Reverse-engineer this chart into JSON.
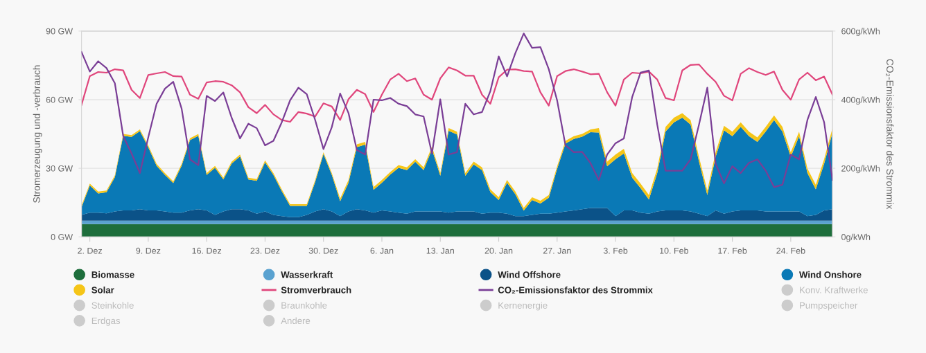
{
  "chart_data": {
    "type": "area",
    "stacked": true,
    "ylabel": "Stromerzeugung und -verbrauch",
    "y2label": "CO₂-Emissionsfaktor des Strommix",
    "categories": [
      null,
      "2. Dez",
      null,
      null,
      null,
      null,
      null,
      null,
      "9. Dez",
      null,
      null,
      null,
      null,
      null,
      null,
      "16. Dez",
      null,
      null,
      null,
      null,
      null,
      null,
      "23. Dez",
      null,
      null,
      null,
      null,
      null,
      null,
      "30. Dez",
      null,
      null,
      null,
      null,
      null,
      null,
      "6. Jan",
      null,
      null,
      null,
      null,
      null,
      null,
      "13. Jan",
      null,
      null,
      null,
      null,
      null,
      null,
      "20. Jan",
      null,
      null,
      null,
      null,
      null,
      null,
      "27. Jan",
      null,
      null,
      null,
      null,
      null,
      null,
      "3. Feb",
      null,
      null,
      null,
      null,
      null,
      null,
      "10. Feb",
      null,
      null,
      null,
      null,
      null,
      null,
      "17. Feb",
      null,
      null,
      null,
      null,
      null,
      null,
      "24. Feb",
      null,
      null,
      null,
      null,
      null
    ],
    "ylim": [
      0,
      90
    ],
    "yticks": [
      {
        "value": 0,
        "label": "0 GW"
      },
      {
        "value": 30,
        "label": "30 GW"
      },
      {
        "value": 60,
        "label": "60 GW"
      },
      {
        "value": 90,
        "label": "90 GW"
      }
    ],
    "y2lim": [
      0,
      600
    ],
    "y2ticks": [
      {
        "value": 0,
        "label": "0g/kWh"
      },
      {
        "value": 200,
        "label": "200g/kWh"
      },
      {
        "value": 400,
        "label": "400g/kWh"
      },
      {
        "value": 600,
        "label": "600g/kWh"
      }
    ],
    "grid": "y",
    "legend": "bottom",
    "series": [
      {
        "name": "Biomasse",
        "color": "#1e6e3c",
        "values": [
          5.6,
          5.6,
          5.6,
          5.6,
          5.6,
          5.6,
          5.6,
          5.6,
          5.6,
          5.6,
          5.6,
          5.6,
          5.6,
          5.6,
          5.6,
          5.6,
          5.6,
          5.6,
          5.6,
          5.6,
          5.6,
          5.6,
          5.6,
          5.6,
          5.6,
          5.6,
          5.6,
          5.6,
          5.6,
          5.6,
          5.6,
          5.6,
          5.6,
          5.6,
          5.6,
          5.6,
          5.6,
          5.6,
          5.6,
          5.6,
          5.6,
          5.6,
          5.6,
          5.6,
          5.6,
          5.6,
          5.6,
          5.6,
          5.6,
          5.6,
          5.6,
          5.6,
          5.6,
          5.6,
          5.6,
          5.6,
          5.6,
          5.6,
          5.6,
          5.6,
          5.6,
          5.6,
          5.6,
          5.6,
          5.6,
          5.6,
          5.6,
          5.6,
          5.6,
          5.6,
          5.6,
          5.6,
          5.6,
          5.6,
          5.6,
          5.6,
          5.6,
          5.6,
          5.6,
          5.6,
          5.6,
          5.6,
          5.6,
          5.6,
          5.6,
          5.6,
          5.6,
          5.6,
          5.6,
          5.6,
          5.6
        ]
      },
      {
        "name": "Wasserkraft",
        "color": "#5aa2d0",
        "values": [
          1.5,
          1.5,
          1.5,
          1.5,
          1.5,
          1.5,
          1.5,
          1.5,
          1.5,
          1.5,
          1.5,
          1.5,
          1.5,
          1.5,
          1.5,
          1.5,
          1.5,
          1.5,
          1.5,
          1.5,
          1.5,
          1.5,
          1.5,
          1.5,
          1.5,
          1.5,
          1.5,
          1.5,
          1.5,
          1.5,
          1.5,
          1.5,
          1.5,
          1.5,
          1.5,
          1.5,
          1.5,
          1.5,
          1.5,
          1.5,
          1.5,
          1.5,
          1.5,
          1.5,
          1.5,
          1.5,
          1.5,
          1.5,
          1.5,
          1.5,
          1.5,
          1.5,
          1.5,
          1.5,
          1.5,
          1.5,
          1.5,
          1.5,
          1.5,
          1.5,
          1.5,
          1.5,
          1.5,
          1.5,
          1.5,
          1.5,
          1.5,
          1.5,
          1.5,
          1.5,
          1.5,
          1.5,
          1.5,
          1.5,
          1.5,
          1.5,
          1.5,
          1.5,
          1.5,
          1.5,
          1.5,
          1.5,
          1.5,
          1.5,
          1.5,
          1.5,
          1.5,
          1.5,
          1.5,
          1.5,
          1.5
        ]
      },
      {
        "name": "Wind Offshore",
        "color": "#0b5288",
        "values": [
          2.5,
          3.5,
          3.5,
          3.2,
          4.0,
          4.5,
          4.5,
          5.0,
          4.5,
          4.5,
          4.0,
          3.5,
          3.5,
          4.5,
          5.0,
          4.5,
          2.5,
          4.0,
          5.0,
          5.0,
          4.5,
          3.0,
          4.0,
          2.5,
          2.0,
          1.5,
          1.5,
          2.5,
          4.0,
          5.0,
          4.0,
          2.0,
          4.0,
          5.0,
          4.5,
          3.5,
          4.5,
          4.0,
          3.5,
          3.0,
          4.0,
          4.0,
          4.0,
          4.0,
          3.5,
          4.0,
          4.0,
          4.0,
          3.0,
          3.5,
          3.5,
          3.0,
          2.0,
          2.0,
          2.5,
          3.0,
          3.0,
          3.5,
          4.0,
          4.5,
          5.0,
          5.5,
          5.5,
          5.5,
          2.0,
          4.5,
          4.5,
          3.5,
          3.0,
          4.0,
          4.5,
          4.5,
          4.5,
          4.0,
          3.0,
          2.0,
          4.5,
          3.0,
          4.0,
          4.5,
          4.5,
          4.5,
          4.0,
          4.0,
          4.0,
          4.0,
          4.0,
          2.0,
          2.5,
          4.5,
          5.0
        ]
      },
      {
        "name": "Wind Onshore",
        "color": "#0a79b6",
        "values": [
          3.3,
          11.9,
          8.4,
          9.2,
          15.0,
          32.6,
          32.1,
          34.1,
          27.6,
          19.5,
          16.0,
          12.9,
          20.5,
          30.7,
          32.1,
          15.5,
          20.6,
          14.0,
          20.0,
          23.1,
          13.5,
          14.4,
          21.5,
          17.5,
          10.9,
          4.9,
          4.9,
          3.9,
          12.9,
          24.1,
          16.0,
          6.5,
          12.6,
          27.2,
          28.7,
          10.0,
          12.1,
          16.1,
          19.6,
          19.1,
          21.7,
          18.1,
          27.2,
          15.6,
          35.8,
          33.7,
          15.6,
          20.6,
          19.1,
          9.0,
          5.5,
          13.6,
          9.5,
          2.4,
          6.5,
          4.5,
          7.0,
          19.1,
          29.7,
          31.2,
          31.7,
          33.2,
          33.0,
          18.3,
          24.9,
          24.9,
          14.3,
          10.7,
          6.2,
          16.8,
          34.5,
          38.5,
          40.5,
          38.0,
          22.9,
          9.2,
          23.4,
          36.5,
          32.9,
          36.5,
          32.4,
          29.9,
          35.0,
          40.0,
          35.0,
          23.9,
          32.9,
          18.8,
          11.2,
          20.4,
          33.5
        ]
      },
      {
        "name": "Solar",
        "color": "#f5c518",
        "values": [
          0.8,
          0.8,
          0.8,
          0.8,
          0.8,
          0.8,
          0.8,
          0.8,
          0.8,
          0.8,
          0.8,
          0.8,
          0.8,
          0.8,
          0.8,
          0.8,
          0.8,
          0.8,
          0.8,
          0.8,
          0.8,
          0.8,
          0.8,
          0.8,
          0.8,
          0.8,
          0.8,
          0.8,
          0.8,
          0.8,
          0.8,
          1.2,
          1.2,
          1.2,
          1.2,
          1.2,
          1.2,
          1.2,
          1.2,
          1.2,
          1.2,
          1.2,
          1.2,
          1.2,
          1.2,
          1.2,
          1.2,
          1.2,
          1.2,
          1.2,
          1.2,
          1.2,
          1.2,
          1.2,
          1.2,
          1.2,
          1.2,
          1.2,
          1.2,
          1.2,
          1.2,
          1.2,
          2.0,
          2.0,
          2.0,
          2.0,
          2.0,
          2.0,
          2.0,
          2.0,
          2.0,
          2.0,
          2.0,
          2.0,
          2.0,
          2.0,
          2.0,
          2.0,
          2.0,
          2.0,
          2.0,
          2.0,
          2.0,
          2.0,
          2.0,
          2.0,
          2.0,
          2.0,
          2.0,
          2.0,
          2.0
        ]
      },
      {
        "name": "Stromverbrauch",
        "type": "line",
        "color": "#e0467c",
        "values": [
          57.7,
          70.3,
          72.1,
          71.8,
          73.3,
          72.8,
          64.3,
          60.7,
          70.8,
          71.5,
          72.1,
          70.3,
          70.1,
          62.2,
          60.4,
          67.5,
          68.1,
          67.8,
          66.3,
          63.2,
          56.7,
          54.1,
          57.7,
          53.6,
          51.1,
          50.3,
          54.6,
          53.9,
          52.6,
          58.4,
          57.0,
          51.1,
          60.2,
          64.3,
          62.4,
          54.6,
          62.2,
          68.8,
          71.3,
          68.1,
          69.3,
          62.2,
          60.0,
          69.3,
          74.1,
          72.8,
          70.5,
          70.5,
          62.2,
          58.2,
          69.8,
          73.1,
          73.3,
          72.5,
          72.3,
          63.2,
          57.4,
          70.3,
          72.5,
          73.3,
          72.3,
          71.1,
          71.3,
          63.2,
          57.4,
          68.8,
          71.8,
          71.5,
          72.3,
          68.8,
          60.7,
          59.7,
          72.8,
          75.2,
          75.4,
          71.3,
          67.8,
          61.7,
          59.7,
          71.3,
          73.8,
          72.1,
          70.8,
          72.3,
          64.3,
          60.0,
          68.8,
          71.8,
          68.5,
          70.1,
          62.2
        ]
      },
      {
        "name": "CO₂-Emissionsfaktor des Strommix",
        "type": "line",
        "axis": "y2",
        "color": "#7a3e96",
        "values": [
          539,
          482,
          512,
          492,
          448,
          294,
          243,
          186,
          290,
          388,
          432,
          452,
          374,
          226,
          209,
          411,
          396,
          421,
          347,
          287,
          330,
          317,
          267,
          280,
          334,
          398,
          435,
          416,
          341,
          256,
          320,
          418,
          361,
          253,
          240,
          400,
          398,
          405,
          388,
          381,
          357,
          351,
          243,
          401,
          240,
          247,
          388,
          357,
          364,
          425,
          526,
          468,
          536,
          593,
          551,
          553,
          489,
          398,
          267,
          247,
          248,
          215,
          166,
          240,
          273,
          287,
          408,
          479,
          485,
          327,
          193,
          193,
          193,
          226,
          327,
          435,
          213,
          156,
          206,
          186,
          216,
          226,
          193,
          145,
          152,
          240,
          226,
          341,
          408,
          334,
          166
        ]
      },
      {
        "name": "Konv. Kraftwerke",
        "color": "#cccccc",
        "values": [
          null,
          null,
          null,
          null,
          null,
          null,
          null,
          null,
          null,
          null,
          null,
          null,
          null,
          null,
          null,
          null,
          null,
          null,
          null,
          null,
          null,
          null,
          null,
          null,
          null,
          null,
          null,
          null,
          null,
          null,
          null,
          null,
          null,
          null,
          null,
          null,
          null,
          null,
          null,
          null,
          null,
          null,
          null,
          null,
          null,
          null,
          null,
          null,
          null,
          null,
          null,
          null,
          null,
          null,
          null,
          null,
          null,
          null,
          null,
          null,
          null,
          null,
          null,
          null,
          null,
          null,
          null,
          null,
          null,
          null,
          null,
          null,
          null,
          null,
          null,
          null,
          null,
          null,
          null,
          null,
          null,
          null,
          null,
          null,
          null,
          null,
          null,
          null,
          null,
          null,
          null
        ]
      },
      {
        "name": "Steinkohle",
        "color": "#cccccc",
        "values": [
          null,
          null,
          null,
          null,
          null,
          null,
          null,
          null,
          null,
          null,
          null,
          null,
          null,
          null,
          null,
          null,
          null,
          null,
          null,
          null,
          null,
          null,
          null,
          null,
          null,
          null,
          null,
          null,
          null,
          null,
          null,
          null,
          null,
          null,
          null,
          null,
          null,
          null,
          null,
          null,
          null,
          null,
          null,
          null,
          null,
          null,
          null,
          null,
          null,
          null,
          null,
          null,
          null,
          null,
          null,
          null,
          null,
          null,
          null,
          null,
          null,
          null,
          null,
          null,
          null,
          null,
          null,
          null,
          null,
          null,
          null,
          null,
          null,
          null,
          null,
          null,
          null,
          null,
          null,
          null,
          null,
          null,
          null,
          null,
          null,
          null,
          null,
          null,
          null,
          null,
          null
        ]
      },
      {
        "name": "Braunkohle",
        "color": "#cccccc",
        "values": [
          null,
          null,
          null,
          null,
          null,
          null,
          null,
          null,
          null,
          null,
          null,
          null,
          null,
          null,
          null,
          null,
          null,
          null,
          null,
          null,
          null,
          null,
          null,
          null,
          null,
          null,
          null,
          null,
          null,
          null,
          null,
          null,
          null,
          null,
          null,
          null,
          null,
          null,
          null,
          null,
          null,
          null,
          null,
          null,
          null,
          null,
          null,
          null,
          null,
          null,
          null,
          null,
          null,
          null,
          null,
          null,
          null,
          null,
          null,
          null,
          null,
          null,
          null,
          null,
          null,
          null,
          null,
          null,
          null,
          null,
          null,
          null,
          null,
          null,
          null,
          null,
          null,
          null,
          null,
          null,
          null,
          null,
          null,
          null,
          null,
          null,
          null,
          null,
          null,
          null,
          null
        ]
      },
      {
        "name": "Kernenergie",
        "color": "#cccccc",
        "values": [
          null,
          null,
          null,
          null,
          null,
          null,
          null,
          null,
          null,
          null,
          null,
          null,
          null,
          null,
          null,
          null,
          null,
          null,
          null,
          null,
          null,
          null,
          null,
          null,
          null,
          null,
          null,
          null,
          null,
          null,
          null,
          null,
          null,
          null,
          null,
          null,
          null,
          null,
          null,
          null,
          null,
          null,
          null,
          null,
          null,
          null,
          null,
          null,
          null,
          null,
          null,
          null,
          null,
          null,
          null,
          null,
          null,
          null,
          null,
          null,
          null,
          null,
          null,
          null,
          null,
          null,
          null,
          null,
          null,
          null,
          null,
          null,
          null,
          null,
          null,
          null,
          null,
          null,
          null,
          null,
          null,
          null,
          null,
          null,
          null,
          null,
          null,
          null,
          null,
          null,
          null
        ]
      },
      {
        "name": "Pumpspeicher",
        "color": "#cccccc",
        "values": [
          null,
          null,
          null,
          null,
          null,
          null,
          null,
          null,
          null,
          null,
          null,
          null,
          null,
          null,
          null,
          null,
          null,
          null,
          null,
          null,
          null,
          null,
          null,
          null,
          null,
          null,
          null,
          null,
          null,
          null,
          null,
          null,
          null,
          null,
          null,
          null,
          null,
          null,
          null,
          null,
          null,
          null,
          null,
          null,
          null,
          null,
          null,
          null,
          null,
          null,
          null,
          null,
          null,
          null,
          null,
          null,
          null,
          null,
          null,
          null,
          null,
          null,
          null,
          null,
          null,
          null,
          null,
          null,
          null,
          null,
          null,
          null,
          null,
          null,
          null,
          null,
          null,
          null,
          null,
          null,
          null,
          null,
          null,
          null,
          null,
          null,
          null,
          null,
          null,
          null,
          null
        ]
      },
      {
        "name": "Erdgas",
        "color": "#cccccc",
        "values": [
          null,
          null,
          null,
          null,
          null,
          null,
          null,
          null,
          null,
          null,
          null,
          null,
          null,
          null,
          null,
          null,
          null,
          null,
          null,
          null,
          null,
          null,
          null,
          null,
          null,
          null,
          null,
          null,
          null,
          null,
          null,
          null,
          null,
          null,
          null,
          null,
          null,
          null,
          null,
          null,
          null,
          null,
          null,
          null,
          null,
          null,
          null,
          null,
          null,
          null,
          null,
          null,
          null,
          null,
          null,
          null,
          null,
          null,
          null,
          null,
          null,
          null,
          null,
          null,
          null,
          null,
          null,
          null,
          null,
          null,
          null,
          null,
          null,
          null,
          null,
          null,
          null,
          null,
          null,
          null,
          null,
          null,
          null,
          null,
          null,
          null,
          null,
          null,
          null,
          null,
          null
        ]
      },
      {
        "name": "Andere",
        "color": "#cccccc",
        "values": [
          null,
          null,
          null,
          null,
          null,
          null,
          null,
          null,
          null,
          null,
          null,
          null,
          null,
          null,
          null,
          null,
          null,
          null,
          null,
          null,
          null,
          null,
          null,
          null,
          null,
          null,
          null,
          null,
          null,
          null,
          null,
          null,
          null,
          null,
          null,
          null,
          null,
          null,
          null,
          null,
          null,
          null,
          null,
          null,
          null,
          null,
          null,
          null,
          null,
          null,
          null,
          null,
          null,
          null,
          null,
          null,
          null,
          null,
          null,
          null,
          null,
          null,
          null,
          null,
          null,
          null,
          null,
          null,
          null,
          null,
          null,
          null,
          null,
          null,
          null,
          null,
          null,
          null,
          null,
          null,
          null,
          null,
          null,
          null,
          null,
          null,
          null,
          null,
          null,
          null,
          null
        ]
      }
    ]
  }
}
